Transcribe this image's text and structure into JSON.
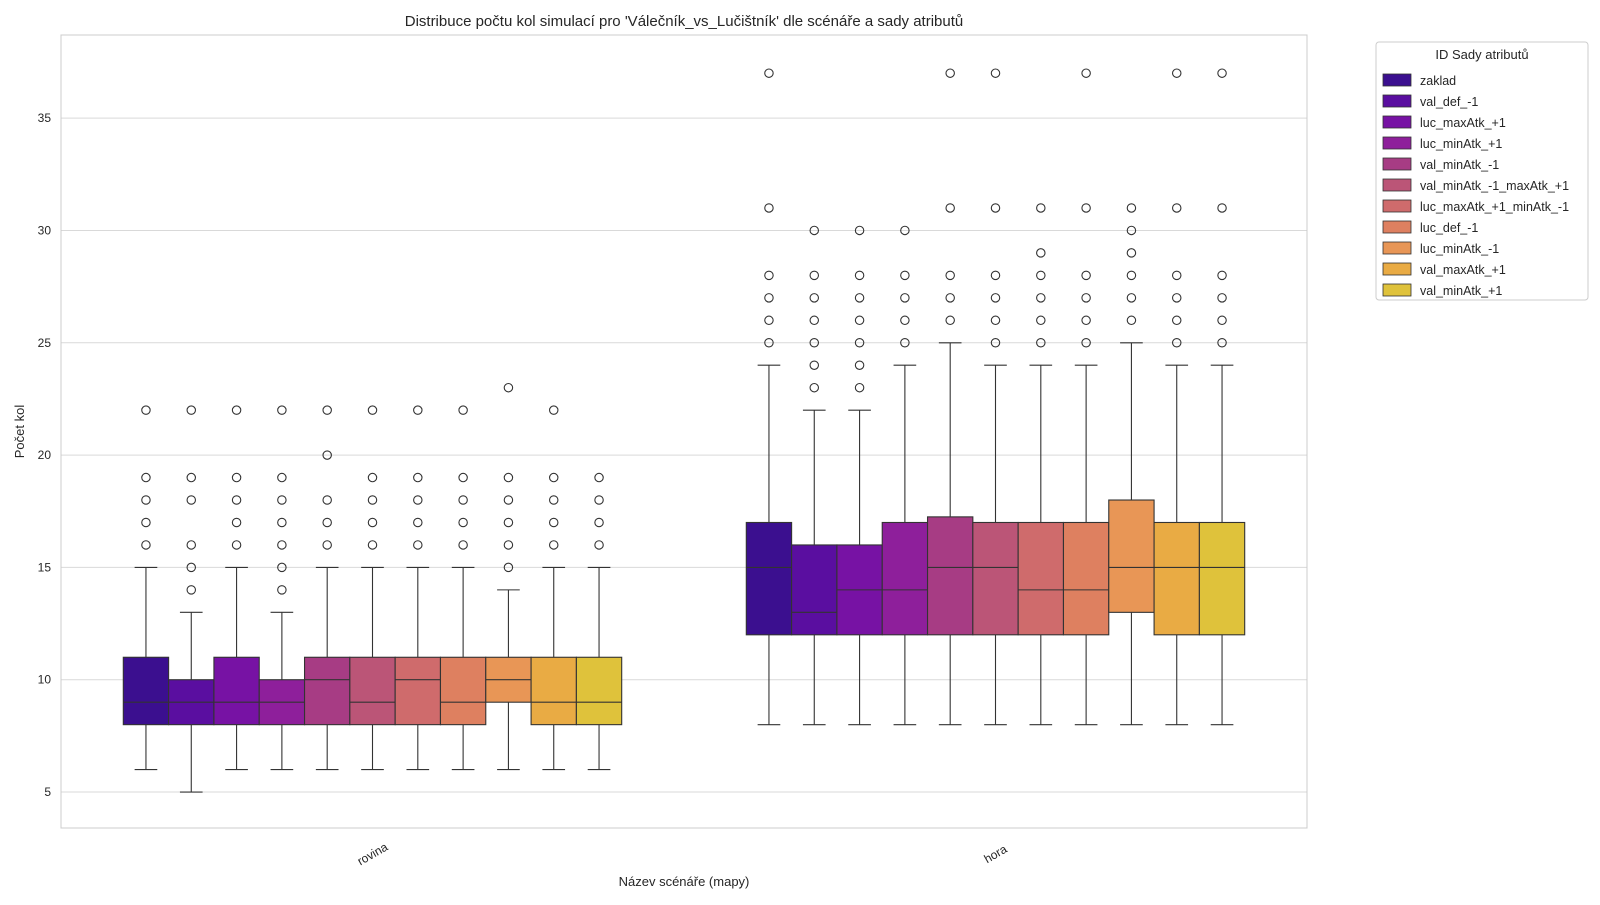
{
  "chart_data": {
    "type": "boxplot",
    "title": "Distribuce počtu kol simulací pro 'Válečník_vs_Lučištník' dle scénáře a sady atributů",
    "xlabel": "Název scénáře (mapy)",
    "ylabel": "Počet kol",
    "categories": [
      "rovina",
      "hora"
    ],
    "ylim": [
      3.4,
      38.7
    ],
    "yticks": [
      5,
      10,
      15,
      20,
      25,
      30,
      35
    ],
    "grid": true,
    "legend": {
      "title": "ID Sady atributů",
      "position": "outside-top-right"
    },
    "series": [
      {
        "name": "zaklad",
        "color": "#3b0f8f",
        "stats": [
          {
            "whisker_low": 6,
            "q1": 8,
            "median": 9,
            "q3": 11,
            "whisker_high": 15,
            "outliers": [
              16,
              17,
              18,
              19,
              22
            ]
          },
          {
            "whisker_low": 8,
            "q1": 12,
            "median": 15,
            "q3": 17,
            "whisker_high": 24,
            "outliers": [
              25,
              26,
              27,
              28,
              31,
              37
            ]
          }
        ]
      },
      {
        "name": "val_def_-1",
        "color": "#5a0ea0",
        "stats": [
          {
            "whisker_low": 5,
            "q1": 8,
            "median": 9,
            "q3": 10,
            "whisker_high": 13,
            "outliers": [
              14,
              15,
              16,
              18,
              19,
              22
            ]
          },
          {
            "whisker_low": 8,
            "q1": 12,
            "median": 13,
            "q3": 16,
            "whisker_high": 22,
            "outliers": [
              23,
              24,
              25,
              26,
              27,
              28,
              30
            ]
          }
        ]
      },
      {
        "name": "luc_maxAtk_+1",
        "color": "#7712a4",
        "stats": [
          {
            "whisker_low": 6,
            "q1": 8,
            "median": 9,
            "q3": 11,
            "whisker_high": 15,
            "outliers": [
              16,
              17,
              18,
              19,
              22
            ]
          },
          {
            "whisker_low": 8,
            "q1": 12,
            "median": 14,
            "q3": 16,
            "whisker_high": 22,
            "outliers": [
              23,
              24,
              25,
              26,
              27,
              28,
              30
            ]
          }
        ]
      },
      {
        "name": "luc_minAtk_+1",
        "color": "#8e1f9b",
        "stats": [
          {
            "whisker_low": 6,
            "q1": 8,
            "median": 9,
            "q3": 10,
            "whisker_high": 13,
            "outliers": [
              14,
              15,
              16,
              17,
              18,
              19,
              22
            ]
          },
          {
            "whisker_low": 8,
            "q1": 12,
            "median": 14,
            "q3": 17,
            "whisker_high": 24,
            "outliers": [
              25,
              26,
              27,
              28,
              30
            ]
          }
        ]
      },
      {
        "name": "val_minAtk_-1",
        "color": "#a73c84",
        "stats": [
          {
            "whisker_low": 6,
            "q1": 8,
            "median": 10,
            "q3": 11,
            "whisker_high": 15,
            "outliers": [
              16,
              17,
              18,
              20,
              22
            ]
          },
          {
            "whisker_low": 8,
            "q1": 12,
            "median": 15,
            "q3": 17.25,
            "whisker_high": 25,
            "outliers": [
              26,
              27,
              28,
              31,
              37
            ]
          }
        ]
      },
      {
        "name": "val_minAtk_-1_maxAtk_+1",
        "color": "#bb5577",
        "stats": [
          {
            "whisker_low": 6,
            "q1": 8,
            "median": 9,
            "q3": 11,
            "whisker_high": 15,
            "outliers": [
              16,
              17,
              18,
              19,
              22
            ]
          },
          {
            "whisker_low": 8,
            "q1": 12,
            "median": 15,
            "q3": 17,
            "whisker_high": 24,
            "outliers": [
              25,
              26,
              27,
              28,
              31,
              37
            ]
          }
        ]
      },
      {
        "name": "luc_maxAtk_+1_minAtk_-1",
        "color": "#cf6b6c",
        "stats": [
          {
            "whisker_low": 6,
            "q1": 8,
            "median": 10,
            "q3": 11,
            "whisker_high": 15,
            "outliers": [
              16,
              17,
              18,
              19,
              22
            ]
          },
          {
            "whisker_low": 8,
            "q1": 12,
            "median": 14,
            "q3": 17,
            "whisker_high": 24,
            "outliers": [
              25,
              26,
              27,
              28,
              29,
              31
            ]
          }
        ]
      },
      {
        "name": "luc_def_-1",
        "color": "#de8060",
        "stats": [
          {
            "whisker_low": 6,
            "q1": 8,
            "median": 9,
            "q3": 11,
            "whisker_high": 15,
            "outliers": [
              16,
              17,
              18,
              19,
              22
            ]
          },
          {
            "whisker_low": 8,
            "q1": 12,
            "median": 14,
            "q3": 17,
            "whisker_high": 24,
            "outliers": [
              25,
              26,
              27,
              28,
              31,
              37
            ]
          }
        ]
      },
      {
        "name": "luc_minAtk_-1",
        "color": "#e89656",
        "stats": [
          {
            "whisker_low": 6,
            "q1": 9,
            "median": 10,
            "q3": 11,
            "whisker_high": 14,
            "outliers": [
              15,
              16,
              17,
              18,
              19,
              23
            ]
          },
          {
            "whisker_low": 8,
            "q1": 13,
            "median": 15,
            "q3": 18,
            "whisker_high": 25,
            "outliers": [
              26,
              27,
              28,
              29,
              30,
              31
            ]
          }
        ]
      },
      {
        "name": "val_maxAtk_+1",
        "color": "#e9ab44",
        "stats": [
          {
            "whisker_low": 6,
            "q1": 8,
            "median": 9,
            "q3": 11,
            "whisker_high": 15,
            "outliers": [
              16,
              17,
              18,
              19,
              22
            ]
          },
          {
            "whisker_low": 8,
            "q1": 12,
            "median": 15,
            "q3": 17,
            "whisker_high": 24,
            "outliers": [
              25,
              26,
              27,
              28,
              31,
              37
            ]
          }
        ]
      },
      {
        "name": "val_minAtk_+1",
        "color": "#dfc23b",
        "stats": [
          {
            "whisker_low": 6,
            "q1": 8,
            "median": 9,
            "q3": 11,
            "whisker_high": 15,
            "outliers": [
              16,
              17,
              18,
              19
            ]
          },
          {
            "whisker_low": 8,
            "q1": 12,
            "median": 15,
            "q3": 17,
            "whisker_high": 24,
            "outliers": [
              25,
              26,
              27,
              28,
              31,
              37
            ]
          }
        ]
      }
    ]
  }
}
